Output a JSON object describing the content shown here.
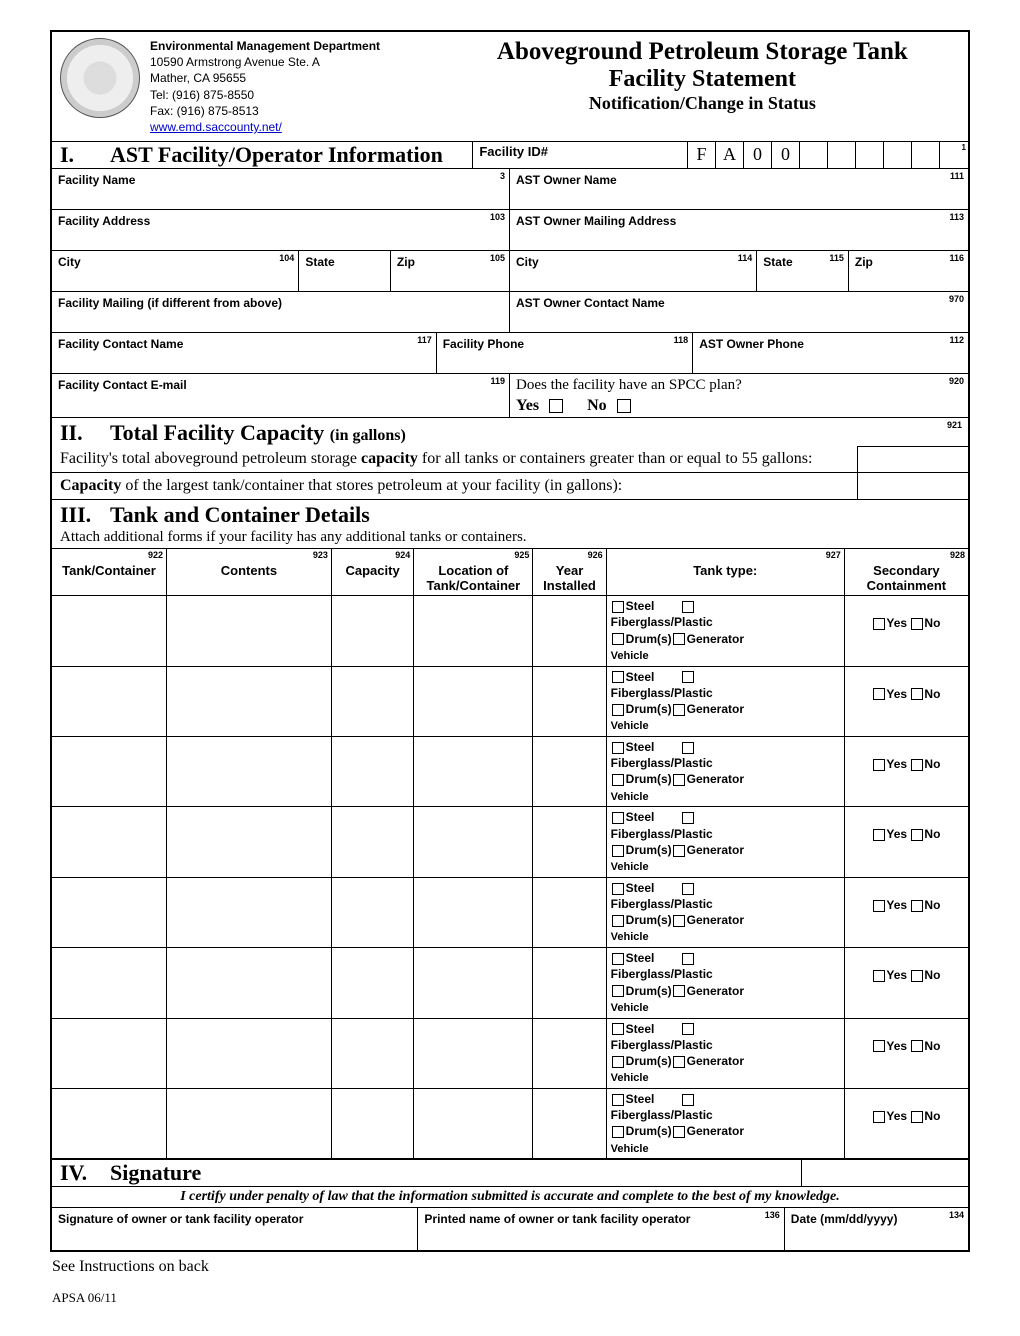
{
  "header": {
    "dept_title": "Environmental Management Department",
    "addr1": "10590 Armstrong Avenue Ste. A",
    "addr2": "Mather, CA 95655",
    "tel": "Tel: (916) 875-8550",
    "fax": "Fax: (916) 875-8513",
    "url": "www.emd.saccounty.net/",
    "form_title1": "Aboveground Petroleum Storage Tank",
    "form_title2": "Facility Statement",
    "form_title3": "Notification/Change in Status"
  },
  "section1": {
    "roman": "I.",
    "title": "AST Facility/Operator Information",
    "facility_id_label": "Facility ID#",
    "id_chars": [
      "F",
      "A",
      "0",
      "0",
      "",
      "",
      "",
      "",
      "",
      ""
    ],
    "id_num": "1",
    "fields": {
      "fac_name": {
        "label": "Facility Name",
        "num": "3"
      },
      "owner_name": {
        "label": "AST Owner Name",
        "num": "111"
      },
      "fac_addr": {
        "label": "Facility Address",
        "num": "103"
      },
      "owner_mail": {
        "label": "AST Owner Mailing Address",
        "num": "113"
      },
      "city1": {
        "label": "City",
        "num": "104"
      },
      "state1": {
        "label": "State"
      },
      "zip1": {
        "label": "Zip",
        "num": "105"
      },
      "city2": {
        "label": "City",
        "num": "114"
      },
      "state2": {
        "label": "State",
        "num": "115"
      },
      "zip2": {
        "label": "Zip",
        "num": "116"
      },
      "fac_mail": {
        "label": "Facility Mailing (if different from above)"
      },
      "owner_contact": {
        "label": "AST Owner Contact Name",
        "num": "970"
      },
      "fac_contact": {
        "label": "Facility Contact Name",
        "num": "117"
      },
      "fac_phone": {
        "label": "Facility Phone",
        "num": "118"
      },
      "owner_phone": {
        "label": "AST Owner Phone",
        "num": "112"
      },
      "fac_email": {
        "label": "Facility Contact E-mail",
        "num": "119"
      },
      "spcc": {
        "label": "Does the facility have an SPCC plan?",
        "num": "920",
        "yes": "Yes",
        "no": "No"
      }
    }
  },
  "section2": {
    "roman": "II.",
    "title": "Total Facility Capacity",
    "paren": "(in gallons)",
    "num": "921",
    "line1a": "Facility's total aboveground petroleum storage ",
    "line1b": "capacity",
    "line1c": " for all tanks or containers greater than or equal to 55 gallons:",
    "line2a": "Capacity",
    "line2b": " of the largest tank/container that stores petroleum at your facility (in gallons):"
  },
  "section3": {
    "roman": "III.",
    "title": "Tank and Container Details",
    "sub": "Attach additional forms if your facility has any additional tanks or containers.",
    "cols": [
      {
        "num": "922",
        "l1": "",
        "l2": "Tank/Container"
      },
      {
        "num": "923",
        "l1": "",
        "l2": "Contents"
      },
      {
        "num": "924",
        "l1": "",
        "l2": "Capacity"
      },
      {
        "num": "925",
        "l1": "Location of",
        "l2": "Tank/Container"
      },
      {
        "num": "926",
        "l1": "Year",
        "l2": "Installed"
      },
      {
        "num": "927",
        "l1": "",
        "l2": "Tank type:"
      },
      {
        "num": "928",
        "l1": "Secondary",
        "l2": "Containment"
      }
    ],
    "tanktype": {
      "steel": "Steel",
      "fiber": "Fiberglass/Plastic",
      "drum": "Drum(s)",
      "gen": "Generator",
      "veh": "Vehicle"
    },
    "sc": {
      "yes": "Yes",
      "no": "No"
    },
    "row_count": 8,
    "col_widths_pct": [
      12.5,
      18,
      9,
      13,
      8,
      26,
      13.5
    ]
  },
  "section4": {
    "roman": "IV.",
    "title": "Signature",
    "cert": "I certify under penalty of law that the information submitted is accurate and complete to the best of my knowledge.",
    "sig": {
      "label": "Signature of owner or tank facility operator"
    },
    "printed": {
      "label": "Printed name of owner or tank facility operator",
      "num": "136"
    },
    "date": {
      "label": "Date (mm/dd/yyyy)",
      "num": "134"
    }
  },
  "footer": {
    "note": "See Instructions on back",
    "code": "APSA 06/11"
  },
  "colors": {
    "border": "#000000",
    "link": "#0000cc",
    "bg": "#ffffff"
  }
}
